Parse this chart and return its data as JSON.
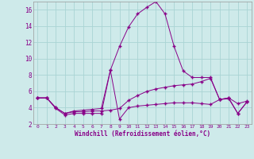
{
  "xlabel": "Windchill (Refroidissement éolien,°C)",
  "background_color": "#ceeaea",
  "line_color": "#880088",
  "grid_color": "#aad4d4",
  "x": [
    0,
    1,
    2,
    3,
    4,
    5,
    6,
    7,
    8,
    9,
    10,
    11,
    12,
    13,
    14,
    15,
    16,
    17,
    18,
    19,
    20,
    21,
    22,
    23
  ],
  "series1": [
    5.2,
    5.2,
    3.9,
    3.1,
    3.3,
    3.3,
    3.3,
    3.3,
    8.6,
    2.6,
    4.0,
    4.2,
    4.3,
    4.4,
    4.5,
    4.6,
    4.6,
    4.6,
    4.5,
    4.4,
    5.0,
    5.1,
    3.3,
    4.7
  ],
  "series2": [
    5.2,
    5.2,
    4.0,
    3.3,
    3.5,
    3.5,
    3.6,
    3.6,
    3.7,
    3.9,
    4.9,
    5.5,
    6.0,
    6.3,
    6.5,
    6.7,
    6.8,
    6.9,
    7.2,
    7.6,
    5.0,
    5.2,
    4.5,
    4.8
  ],
  "series3": [
    5.2,
    5.2,
    4.0,
    3.3,
    3.6,
    3.7,
    3.8,
    3.9,
    8.6,
    11.5,
    13.9,
    15.5,
    16.3,
    17.0,
    15.5,
    11.5,
    8.5,
    7.7,
    7.7,
    7.7,
    5.0,
    5.2,
    3.3,
    4.7
  ],
  "ylim": [
    2,
    17
  ],
  "yticks": [
    2,
    4,
    6,
    8,
    10,
    12,
    14,
    16
  ],
  "xlim": [
    -0.5,
    23.5
  ]
}
